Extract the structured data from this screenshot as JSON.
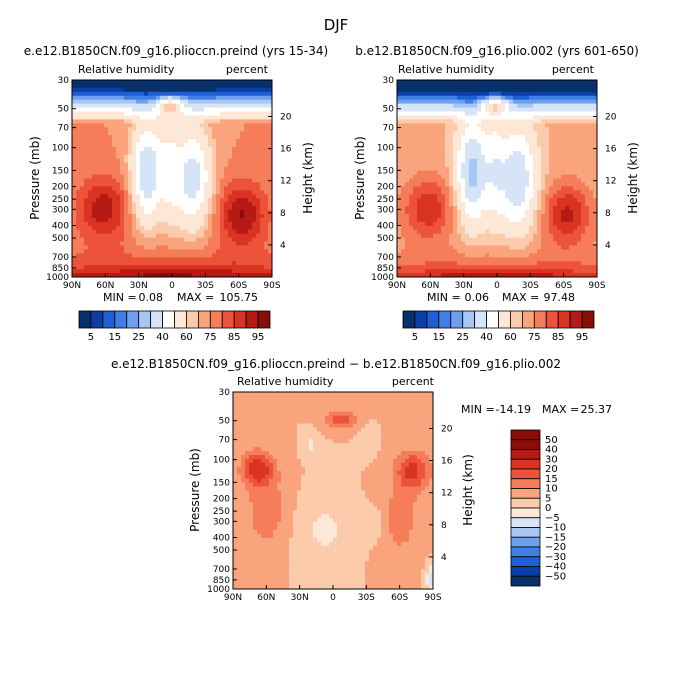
{
  "figure": {
    "title": "DJF",
    "pressure_label": "Pressure  (mb)",
    "height_label": "Height  (km)",
    "pressure_ticks": [
      "30",
      "50",
      "70",
      "100",
      "150",
      "200",
      "250",
      "300",
      "400",
      "500",
      "700",
      "850",
      "1000"
    ],
    "height_ticks": [
      "20",
      "16",
      "12",
      "8",
      "4"
    ],
    "lat_ticks": [
      "90N",
      "60N",
      "30N",
      "0",
      "30S",
      "60S",
      "90S"
    ]
  },
  "colors": {
    "abs": [
      "#08306b",
      "#0b3fa8",
      "#1f5fd6",
      "#3f7fe6",
      "#6ea0ef",
      "#a7c6f4",
      "#d6e4f8",
      "#ffffff",
      "#fde8d7",
      "#fccbab",
      "#f9a47c",
      "#f57d59",
      "#ec533a",
      "#d93322",
      "#b71a14",
      "#8b0d0a"
    ],
    "diff": [
      "#08306b",
      "#0b3fa8",
      "#1f5fd6",
      "#3f7fe6",
      "#6ea0ef",
      "#a7c6f4",
      "#d6e4f8",
      "#fde8d7",
      "#fccbab",
      "#f9a47c",
      "#f57d59",
      "#ec533a",
      "#d93322",
      "#b71a14",
      "#8b0d0a"
    ]
  },
  "chart_data": [
    {
      "type": "heatmap",
      "title": "e.e12.B1850CN.f09_g16.plioccn.preind (yrs 15-34)",
      "left_label": "Relative humidity",
      "right_label": "percent",
      "min_label": "MIN =",
      "min_value": "0.08",
      "max_label": "MAX =",
      "max_value": "105.75",
      "colorbar_labels": [
        "5",
        "15",
        "25",
        "40",
        "60",
        "75",
        "85",
        "95"
      ],
      "xlim": [
        90,
        -90
      ],
      "ylim": [
        1000,
        30
      ]
    },
    {
      "type": "heatmap",
      "title": "b.e12.B1850CN.f09_g16.plio.002 (yrs 601-650)",
      "left_label": "Relative humidity",
      "right_label": "percent",
      "min_label": "MIN =",
      "min_value": "0.06",
      "max_label": "MAX =",
      "max_value": "97.48",
      "colorbar_labels": [
        "5",
        "15",
        "25",
        "40",
        "60",
        "75",
        "85",
        "95"
      ],
      "xlim": [
        90,
        -90
      ],
      "ylim": [
        1000,
        30
      ]
    },
    {
      "type": "heatmap",
      "title": "e.e12.B1850CN.f09_g16.plioccn.preind − b.e12.B1850CN.f09_g16.plio.002",
      "left_label": "Relative humidity",
      "right_label": "percent",
      "min_label": "MIN =",
      "min_value": "-14.19",
      "max_label": "MAX =",
      "max_value": "25.37",
      "colorbar_labels": [
        "50",
        "40",
        "30",
        "20",
        "15",
        "10",
        "5",
        "0",
        "−5",
        "−10",
        "−15",
        "−20",
        "−30",
        "−40",
        "−50"
      ],
      "xlim": [
        90,
        -90
      ],
      "ylim": [
        1000,
        30
      ]
    }
  ]
}
